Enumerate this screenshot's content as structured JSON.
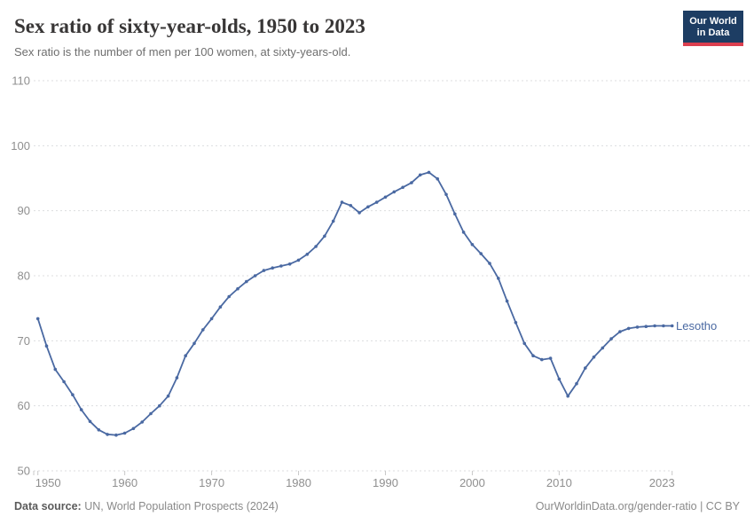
{
  "header": {
    "title": "Sex ratio of sixty-year-olds, 1950 to 2023",
    "subtitle": "Sex ratio is the number of men per 100 women, at sixty-years-old."
  },
  "logo": {
    "line1": "Our World",
    "line2": "in Data",
    "bg_color": "#1d3d63",
    "accent_color": "#dc3f4f"
  },
  "chart_data": {
    "type": "line",
    "title": "Sex ratio of sixty-year-olds, 1950 to 2023",
    "xlabel": "",
    "ylabel": "",
    "ylim": [
      50,
      110
    ],
    "xlim": [
      1950,
      2023
    ],
    "grid": "horizontal-dashed",
    "grid_color": "#dcdddf",
    "tick_label_color": "#8f8f8f",
    "legend_position": "end-of-line-label",
    "x_ticks": [
      "1950",
      "1960",
      "1970",
      "1980",
      "1990",
      "2000",
      "2010",
      "2023"
    ],
    "y_ticks": [
      "50",
      "60",
      "70",
      "80",
      "90",
      "100",
      "110"
    ],
    "series": [
      {
        "name": "Lesotho",
        "color": "#4a69a2",
        "years": [
          1950,
          1951,
          1952,
          1953,
          1954,
          1955,
          1956,
          1957,
          1958,
          1959,
          1960,
          1961,
          1962,
          1963,
          1964,
          1965,
          1966,
          1967,
          1968,
          1969,
          1970,
          1971,
          1972,
          1973,
          1974,
          1975,
          1976,
          1977,
          1978,
          1979,
          1980,
          1981,
          1982,
          1983,
          1984,
          1985,
          1986,
          1987,
          1988,
          1989,
          1990,
          1991,
          1992,
          1993,
          1994,
          1995,
          1996,
          1997,
          1998,
          1999,
          2000,
          2001,
          2002,
          2003,
          2004,
          2005,
          2006,
          2007,
          2008,
          2009,
          2010,
          2011,
          2012,
          2013,
          2014,
          2015,
          2016,
          2017,
          2018,
          2019,
          2020,
          2021,
          2022,
          2023
        ],
        "values": [
          73.4,
          69.2,
          65.6,
          63.7,
          61.7,
          59.4,
          57.6,
          56.3,
          55.6,
          55.5,
          55.8,
          56.5,
          57.5,
          58.8,
          60.0,
          61.5,
          64.3,
          67.7,
          69.6,
          71.7,
          73.4,
          75.2,
          76.8,
          78.0,
          79.1,
          80.0,
          80.8,
          81.2,
          81.5,
          81.8,
          82.4,
          83.3,
          84.5,
          86.1,
          88.4,
          91.3,
          90.8,
          89.7,
          90.6,
          91.3,
          92.1,
          92.9,
          93.6,
          94.3,
          95.5,
          95.9,
          94.9,
          92.5,
          89.5,
          86.7,
          84.8,
          83.4,
          81.9,
          79.6,
          76.1,
          72.8,
          69.6,
          67.7,
          67.1,
          67.3,
          64.1,
          61.5,
          63.4,
          65.8,
          67.5,
          68.9,
          70.3,
          71.4,
          71.9,
          72.1,
          72.2,
          72.3,
          72.3,
          72.3
        ]
      }
    ]
  },
  "footer": {
    "source_label": "Data source:",
    "source_text": " UN, World Population Prospects (2024)",
    "attribution": "OurWorldinData.org/gender-ratio | CC BY"
  }
}
